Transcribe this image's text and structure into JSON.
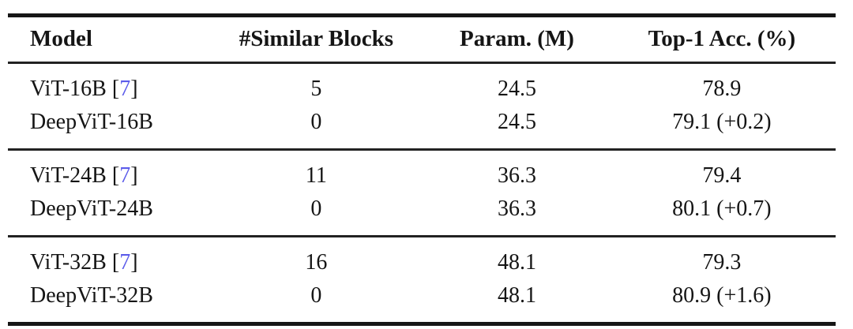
{
  "table": {
    "headers": [
      "Model",
      "#Similar Blocks",
      "Param. (M)",
      "Top-1 Acc. (%)"
    ],
    "citation_color": "#5b5bea",
    "groups": [
      {
        "rows": [
          {
            "model": "ViT-16B",
            "cite_open": " [",
            "cite": "7",
            "cite_close": "]",
            "similar_blocks": "5",
            "params": "24.5",
            "top1": "78.9"
          },
          {
            "model": "DeepViT-16B",
            "cite_open": "",
            "cite": "",
            "cite_close": "",
            "similar_blocks": "0",
            "params": "24.5",
            "top1": "79.1 (+0.2)"
          }
        ]
      },
      {
        "rows": [
          {
            "model": "ViT-24B",
            "cite_open": " [",
            "cite": "7",
            "cite_close": "]",
            "similar_blocks": "11",
            "params": "36.3",
            "top1": "79.4"
          },
          {
            "model": "DeepViT-24B",
            "cite_open": "",
            "cite": "",
            "cite_close": "",
            "similar_blocks": "0",
            "params": "36.3",
            "top1": "80.1 (+0.7)"
          }
        ]
      },
      {
        "rows": [
          {
            "model": "ViT-32B",
            "cite_open": " [",
            "cite": "7",
            "cite_close": "]",
            "similar_blocks": "16",
            "params": "48.1",
            "top1": "79.3"
          },
          {
            "model": "DeepViT-32B",
            "cite_open": "",
            "cite": "",
            "cite_close": "",
            "similar_blocks": "0",
            "params": "48.1",
            "top1": "80.9 (+1.6)"
          }
        ]
      }
    ]
  }
}
